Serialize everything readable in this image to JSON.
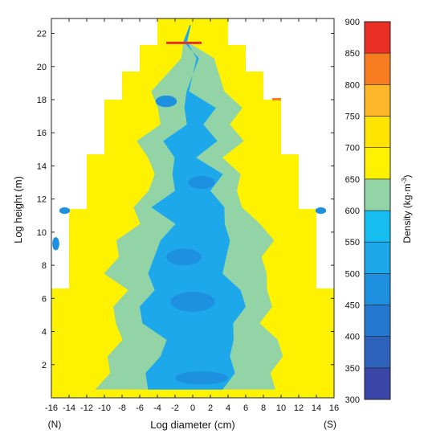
{
  "chart_data": {
    "type": "heatmap",
    "title": "",
    "xlabel": "Log diameter (cm)",
    "ylabel": "Log height (m)",
    "x_ticks": [
      -16,
      -14,
      -12,
      -10,
      -8,
      -6,
      -4,
      -2,
      0,
      2,
      4,
      6,
      8,
      10,
      12,
      14,
      16
    ],
    "y_ticks": [
      2,
      4,
      6,
      8,
      10,
      12,
      14,
      16,
      18,
      20,
      22
    ],
    "xlim": [
      -16,
      16
    ],
    "ylim": [
      0,
      22.9
    ],
    "x_end_labels": {
      "left": "(N)",
      "right": "(S)"
    },
    "colorbar": {
      "label_main": "Density (kg·m",
      "label_sup": "-3",
      "label_close": ")",
      "ticks": [
        300,
        350,
        400,
        450,
        500,
        550,
        600,
        650,
        700,
        750,
        800,
        850,
        900
      ],
      "bins": [
        {
          "from": 300,
          "to": 350,
          "color": "#3a46a8"
        },
        {
          "from": 350,
          "to": 400,
          "color": "#2f62bc"
        },
        {
          "from": 400,
          "to": 450,
          "color": "#2478cf"
        },
        {
          "from": 450,
          "to": 500,
          "color": "#1d91e0"
        },
        {
          "from": 500,
          "to": 550,
          "color": "#1ea8ec"
        },
        {
          "from": 550,
          "to": 600,
          "color": "#16bdf1"
        },
        {
          "from": 600,
          "to": 650,
          "color": "#92d4a6"
        },
        {
          "from": 650,
          "to": 700,
          "color": "#fff200"
        },
        {
          "from": 700,
          "to": 750,
          "color": "#ffe400"
        },
        {
          "from": 750,
          "to": 800,
          "color": "#ffb72a"
        },
        {
          "from": 800,
          "to": 850,
          "color": "#f87d20"
        },
        {
          "from": 850,
          "to": 900,
          "color": "#ea2f27"
        }
      ]
    },
    "trunk_profile_half_width": [
      {
        "y_from": 0,
        "y_to": 6.6,
        "half_width": 16
      },
      {
        "y_from": 6.6,
        "y_to": 11.4,
        "half_width": 14
      },
      {
        "y_from": 11.4,
        "y_to": 14.7,
        "half_width": 12
      },
      {
        "y_from": 14.7,
        "y_to": 18.0,
        "half_width": 10
      },
      {
        "y_from": 18.0,
        "y_to": 19.7,
        "half_width": 8
      },
      {
        "y_from": 19.7,
        "y_to": 21.3,
        "half_width": 6
      },
      {
        "y_from": 21.3,
        "y_to": 22.9,
        "half_width": 4
      }
    ],
    "density_zones": [
      {
        "y": 0.5,
        "green_half": 10,
        "blue_half": 4
      },
      {
        "y": 1.5,
        "green_half": 9,
        "blue_half": 5
      },
      {
        "y": 2.5,
        "green_half": 10,
        "blue_half": 4
      },
      {
        "y": 3.5,
        "green_half": 9,
        "blue_half": 4
      },
      {
        "y": 4.5,
        "green_half": 8,
        "blue_half": 5
      },
      {
        "y": 5.5,
        "green_half": 9,
        "blue_half": 6
      },
      {
        "y": 6.5,
        "green_half": 8,
        "blue_half": 5
      },
      {
        "y": 7.5,
        "green_half": 9,
        "blue_half": 4
      },
      {
        "y": 8.5,
        "green_half": 8,
        "blue_half": 4
      },
      {
        "y": 9.5,
        "green_half": 9,
        "blue_half": 4
      },
      {
        "y": 10.5,
        "green_half": 7,
        "blue_half": 3
      },
      {
        "y": 11.5,
        "green_half": 6,
        "blue_half": 4
      },
      {
        "y": 12.5,
        "green_half": 5,
        "blue_half": 2
      },
      {
        "y": 13.5,
        "green_half": 5,
        "blue_half": 3
      },
      {
        "y": 14.5,
        "green_half": 4,
        "blue_half": 1
      },
      {
        "y": 15.5,
        "green_half": 6,
        "blue_half": 3
      },
      {
        "y": 16.5,
        "green_half": 4,
        "blue_half": 1
      },
      {
        "y": 17.5,
        "green_half": 5,
        "blue_half": 2
      },
      {
        "y": 18.5,
        "green_half": 4,
        "blue_half": 0
      },
      {
        "y": 19.5,
        "green_half": 3,
        "blue_half": 0
      },
      {
        "y": 20.5,
        "green_half": 2,
        "blue_half": 0
      },
      {
        "y": 21.5,
        "green_half": 0,
        "blue_half": 0
      },
      {
        "y": 22.5,
        "green_half": 0,
        "blue_half": 0
      }
    ],
    "grid": false,
    "legend": "right"
  }
}
